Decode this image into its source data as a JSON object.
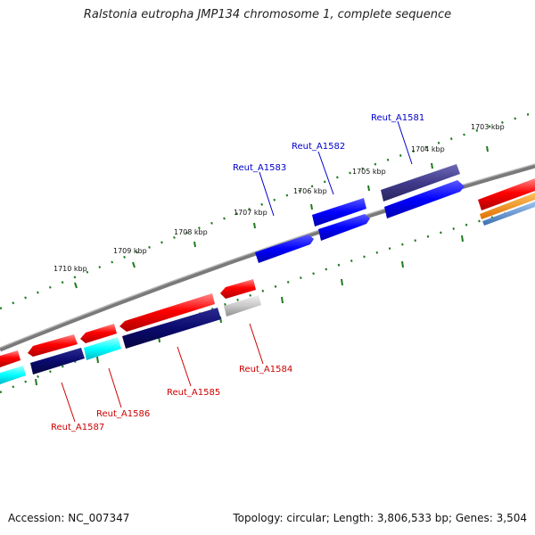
{
  "title": "Ralstonia eutropha JMP134 chromosome 1, complete sequence",
  "accession": "Accession: NC_007347",
  "summary": "Topology: circular; Length: 3,806,533 bp; Genes: 3,504",
  "colors": {
    "backbone": "#808080",
    "tick": "#1e7a1e",
    "forward_label": "#0000cc",
    "reverse_label": "#cc0000",
    "red": "#ff0000",
    "blue": "#0000ff",
    "navy": "#0a0a6e",
    "purple": "#3f3a8a",
    "cyan": "#00ffff",
    "gray": "#bdbdbd",
    "orange": "#ff8c00",
    "steel": "#5b8fd0"
  },
  "scale": {
    "kbp_labels": [
      "1703 kbp",
      "1704 kbp",
      "1705 kbp",
      "1706 kbp",
      "1707 kbp",
      "1708 kbp",
      "1709 kbp",
      "1710 kbp"
    ]
  },
  "genes": {
    "forward": [
      "Reut_A1581",
      "Reut_A1582",
      "Reut_A1583"
    ],
    "reverse": [
      "Reut_A1584",
      "Reut_A1585",
      "Reut_A1586",
      "Reut_A1587"
    ]
  }
}
